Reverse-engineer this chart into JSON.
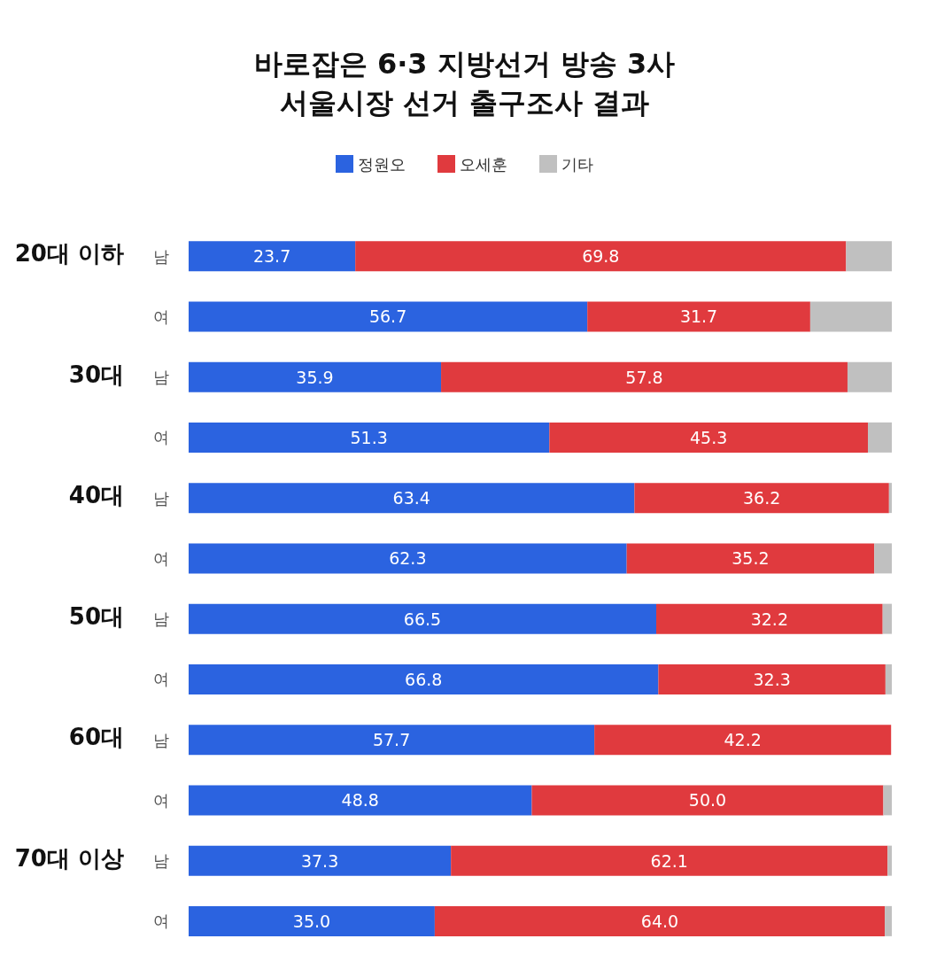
{
  "chart_data": {
    "type": "bar",
    "orientation": "horizontal",
    "stacked": true,
    "title": "바로잡은 6·3 지방선거 방송 3사\n서울시장 선거 출구조사 결과",
    "categories": [
      "남",
      "여",
      "남",
      "여",
      "남",
      "여",
      "남",
      "여",
      "남",
      "여",
      "남",
      "여"
    ],
    "annotations": [
      "20대 이하",
      "30대",
      "40대",
      "50대",
      "60대",
      "70대 이상"
    ],
    "series": [
      {
        "name": "정원오",
        "color": "#2b63e0",
        "values": [
          23.7,
          56.7,
          35.9,
          51.3,
          63.4,
          62.3,
          66.5,
          66.8,
          57.7,
          48.8,
          37.3,
          35.0
        ],
        "value_labels": [
          "23.7",
          "56.7",
          "35.9",
          "51.3",
          "63.4",
          "62.3",
          "66.5",
          "66.8",
          "57.7",
          "48.8",
          "37.3",
          "35.0"
        ]
      },
      {
        "name": "오세훈",
        "color": "#e03a3e",
        "values": [
          69.8,
          31.7,
          57.8,
          45.3,
          36.2,
          35.2,
          32.2,
          32.3,
          42.2,
          50.0,
          62.1,
          64.0
        ],
        "value_labels": [
          "69.8",
          "31.7",
          "57.8",
          "45.3",
          "36.2",
          "35.2",
          "32.2",
          "32.3",
          "42.2",
          "50.0",
          "62.1",
          "64.0"
        ]
      },
      {
        "name": "기타",
        "color": "#c0c0c0",
        "values": [
          6.5,
          11.6,
          6.3,
          3.4,
          0.4,
          2.5,
          1.3,
          0.9,
          null,
          1.2,
          0.6,
          1.0
        ]
      }
    ],
    "legend": "top"
  }
}
